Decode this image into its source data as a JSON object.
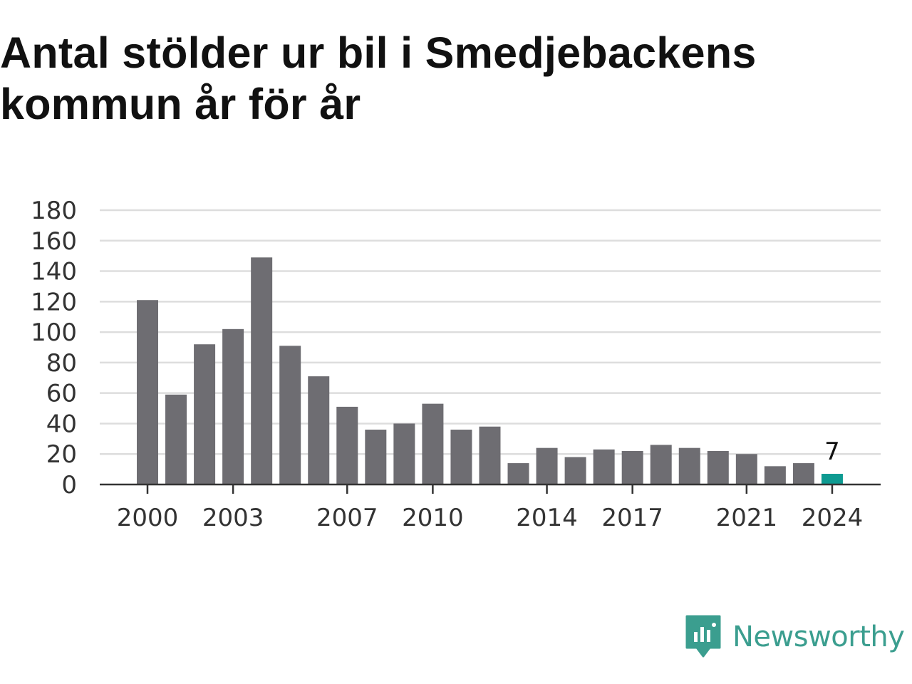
{
  "title": "Antal stölder ur bil i Smedjebackens kommun år för år",
  "brand": {
    "name": "Newsworthy",
    "icon": "newsworthy-logo-icon",
    "color": "#3b9e8f"
  },
  "chart_data": {
    "type": "bar",
    "categories": [
      "2000",
      "2001",
      "2002",
      "2003",
      "2004",
      "2005",
      "2006",
      "2007",
      "2008",
      "2009",
      "2010",
      "2011",
      "2012",
      "2013",
      "2014",
      "2015",
      "2016",
      "2017",
      "2018",
      "2019",
      "2020",
      "2021",
      "2022",
      "2023",
      "2024"
    ],
    "values": [
      121,
      59,
      92,
      102,
      149,
      91,
      71,
      51,
      36,
      40,
      53,
      36,
      38,
      14,
      24,
      18,
      23,
      22,
      26,
      24,
      22,
      20,
      12,
      14,
      7
    ],
    "x_tick_labels": [
      "2000",
      "2003",
      "2007",
      "2010",
      "2014",
      "2017",
      "2021",
      "2024"
    ],
    "y_ticks": [
      0,
      20,
      40,
      60,
      80,
      100,
      120,
      140,
      160,
      180
    ],
    "ylim": [
      0,
      180
    ],
    "grid": true,
    "bar_color": "#6e6d72",
    "highlight_color": "#0e9a91",
    "highlight_category": "2024",
    "data_labels": [
      {
        "category": "2024",
        "text": "7"
      }
    ]
  }
}
